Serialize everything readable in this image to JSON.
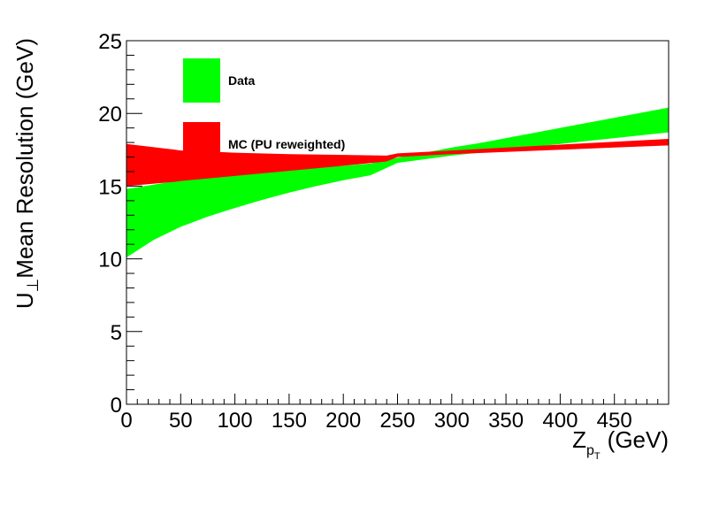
{
  "chart_data": {
    "type": "area",
    "title": "",
    "xlabel": "Z",
    "xlabel_sub": "p",
    "xlabel_subsub": "T",
    "xlabel_unit": "(GeV)",
    "ylabel": "U",
    "ylabel_sub": "⊥",
    "ylabel_rest": "Mean Resolution (GeV)",
    "xlim": [
      0,
      500
    ],
    "ylim": [
      0,
      25
    ],
    "x_ticks": [
      0,
      50,
      100,
      150,
      200,
      250,
      300,
      350,
      400,
      450
    ],
    "y_ticks": [
      0,
      5,
      10,
      15,
      20,
      25
    ],
    "grid": false,
    "legend_position": "top-left",
    "series": [
      {
        "name": "Data",
        "color": "#00ff00",
        "x": [
          0,
          25,
          50,
          75,
          100,
          125,
          150,
          175,
          200,
          225,
          250,
          275,
          300,
          325,
          350,
          375,
          400,
          425,
          450,
          475,
          500
        ],
        "lower": [
          10.1,
          11.3,
          12.2,
          12.9,
          13.5,
          14.05,
          14.55,
          15.0,
          15.4,
          15.75,
          16.6,
          16.85,
          17.1,
          17.3,
          17.5,
          17.7,
          17.9,
          18.1,
          18.3,
          18.5,
          18.7
        ],
        "upper": [
          14.8,
          15.1,
          15.4,
          15.6,
          15.8,
          15.95,
          16.1,
          16.25,
          16.4,
          16.55,
          16.95,
          17.3,
          17.65,
          17.95,
          18.3,
          18.65,
          19.0,
          19.35,
          19.7,
          20.05,
          20.4
        ]
      },
      {
        "name": "MC (PU reweighted)",
        "color": "#ff0000",
        "x": [
          0,
          45,
          50,
          100,
          150,
          200,
          240,
          250,
          300,
          350,
          400,
          450,
          500
        ],
        "lower": [
          15.0,
          15.3,
          15.35,
          15.7,
          16.05,
          16.4,
          16.7,
          17.0,
          17.2,
          17.35,
          17.5,
          17.65,
          17.8
        ],
        "upper": [
          17.9,
          17.5,
          17.45,
          17.3,
          17.2,
          17.15,
          17.1,
          17.25,
          17.45,
          17.65,
          17.85,
          18.05,
          18.25
        ]
      }
    ]
  }
}
